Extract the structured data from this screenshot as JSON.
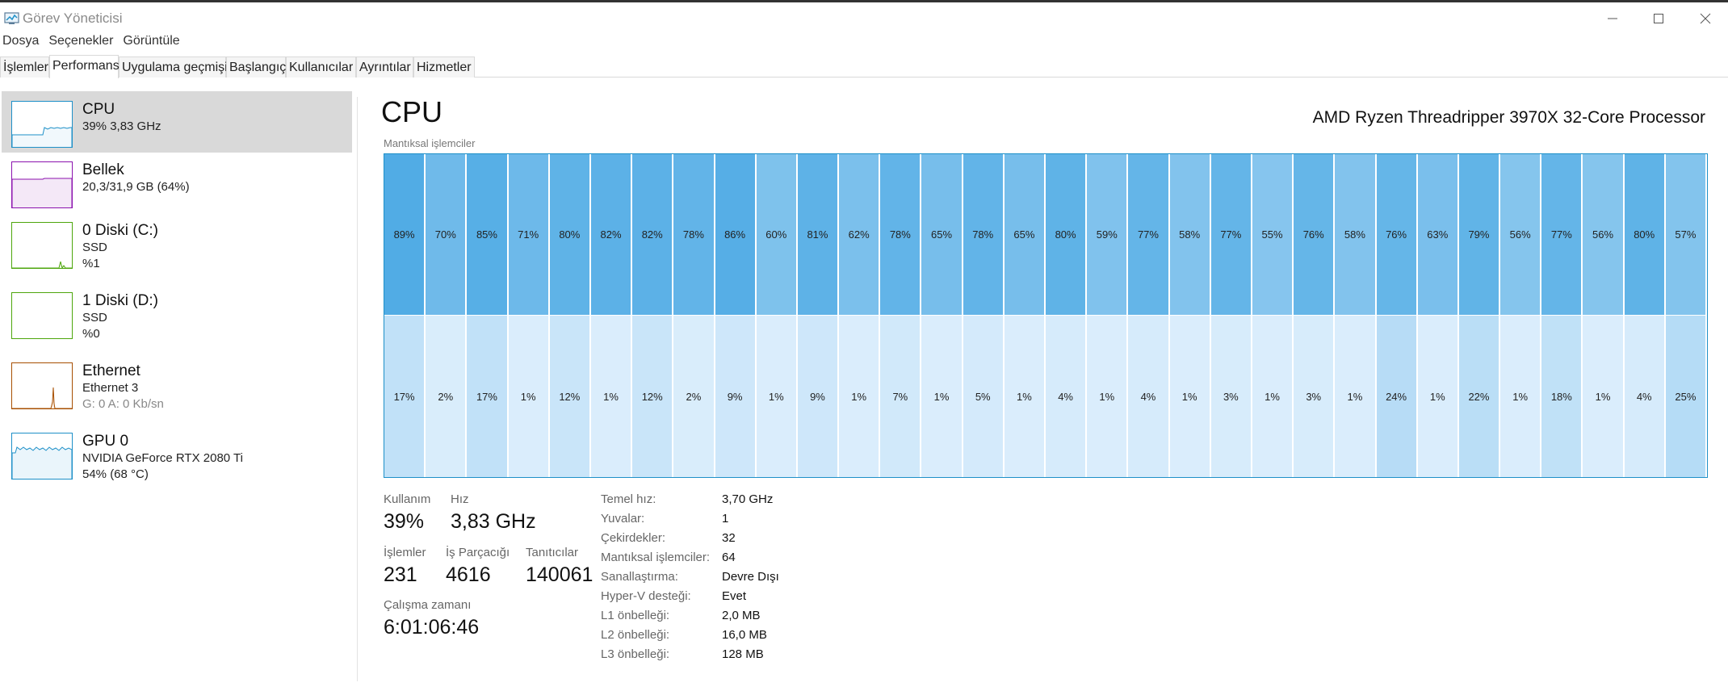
{
  "window": {
    "title": "Görev Yöneticisi",
    "minimize_icon": "minimize-icon",
    "maximize_icon": "maximize-icon",
    "close_icon": "close-icon"
  },
  "menu": [
    "Dosya",
    "Seçenekler",
    "Görüntüle"
  ],
  "tabs": [
    {
      "label": "İşlemler",
      "active": false
    },
    {
      "label": "Performans",
      "active": true
    },
    {
      "label": "Uygulama geçmişi",
      "active": false
    },
    {
      "label": "Başlangıç",
      "active": false
    },
    {
      "label": "Kullanıcılar",
      "active": false
    },
    {
      "label": "Ayrıntılar",
      "active": false
    },
    {
      "label": "Hizmetler",
      "active": false
    }
  ],
  "sidebar": {
    "items": [
      {
        "name": "CPU",
        "line1": "39%  3,83 GHz",
        "color": "#1e90c8",
        "active": true
      },
      {
        "name": "Bellek",
        "line1": "20,3/31,9 GB (64%)",
        "color": "#8b12ae",
        "active": false
      },
      {
        "name": "0 Diski (C:)",
        "line1": "SSD",
        "line2": "%1",
        "color": "#4da60c",
        "active": false
      },
      {
        "name": "1 Diski (D:)",
        "line1": "SSD",
        "line2": "%0",
        "color": "#4da60c",
        "active": false
      },
      {
        "name": "Ethernet",
        "line1": "Ethernet 3",
        "line2_muted": "G: 0 A: 0 Kb/sn",
        "color": "#a74f01",
        "active": false
      },
      {
        "name": "GPU 0",
        "line1": "NVIDIA GeForce RTX 2080 Ti",
        "line2": "54%  (68 °C)",
        "color": "#1e90c8",
        "active": false
      }
    ]
  },
  "main": {
    "title": "CPU",
    "processor": "AMD Ryzen Threadripper 3970X 32-Core Processor",
    "grid_label": "Mantıksal işlemciler"
  },
  "cpu_top": [
    "89%",
    "70%",
    "85%",
    "71%",
    "80%",
    "82%",
    "82%",
    "78%",
    "86%",
    "60%",
    "81%",
    "62%",
    "78%",
    "65%",
    "78%",
    "65%",
    "80%",
    "59%",
    "77%",
    "58%",
    "77%",
    "55%",
    "76%",
    "58%",
    "76%",
    "63%",
    "79%",
    "56%",
    "77%",
    "56%",
    "80%",
    "57%"
  ],
  "cpu_bottom": [
    "17%",
    "2%",
    "17%",
    "1%",
    "12%",
    "1%",
    "12%",
    "2%",
    "9%",
    "1%",
    "9%",
    "1%",
    "7%",
    "1%",
    "5%",
    "1%",
    "4%",
    "1%",
    "4%",
    "1%",
    "3%",
    "1%",
    "3%",
    "1%",
    "24%",
    "1%",
    "22%",
    "1%",
    "18%",
    "1%",
    "4%",
    "25%"
  ],
  "stats": {
    "usage_label": "Kullanım",
    "usage_value": "39%",
    "speed_label": "Hız",
    "speed_value": "3,83 GHz",
    "processes_label": "İşlemler",
    "processes_value": "231",
    "threads_label": "İş Parçacığı",
    "threads_value": "4616",
    "handles_label": "Tanıtıcılar",
    "handles_value": "140061",
    "uptime_label": "Çalışma zamanı",
    "uptime_value": "6:01:06:46"
  },
  "specs": [
    {
      "label": "Temel hız:",
      "value": "3,70 GHz"
    },
    {
      "label": "Yuvalar:",
      "value": "1"
    },
    {
      "label": "Çekirdekler:",
      "value": "32"
    },
    {
      "label": "Mantıksal işlemciler:",
      "value": "64"
    },
    {
      "label": "Sanallaştırma:",
      "value": "Devre Dışı"
    },
    {
      "label": "Hyper-V desteği:",
      "value": "Evet"
    },
    {
      "label": "L1 önbelleği:",
      "value": "2,0 MB"
    },
    {
      "label": "L2 önbelleği:",
      "value": "16,0 MB"
    },
    {
      "label": "L3 önbelleği:",
      "value": "128 MB"
    }
  ]
}
